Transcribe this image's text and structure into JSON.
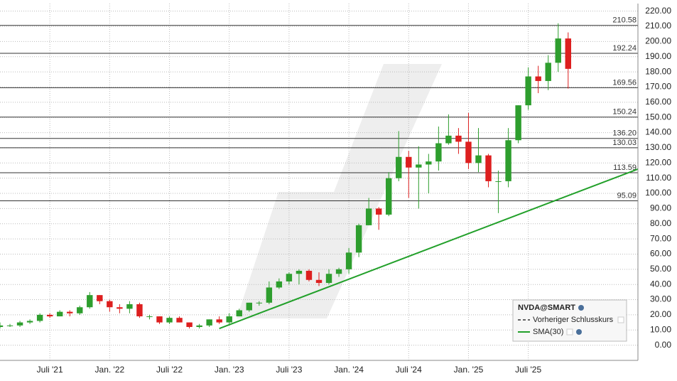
{
  "chart_data": {
    "type": "candlestick",
    "x": [
      "2021-02",
      "2021-03",
      "2021-04",
      "2021-05",
      "2021-06",
      "2021-07",
      "2021-08",
      "2021-09",
      "2021-10",
      "2021-11",
      "2021-12",
      "2022-01",
      "2022-02",
      "2022-03",
      "2022-04",
      "2022-05",
      "2022-06",
      "2022-07",
      "2022-08",
      "2022-09",
      "2022-10",
      "2022-11",
      "2022-12",
      "2023-01",
      "2023-02",
      "2023-03",
      "2023-04",
      "2023-05",
      "2023-06",
      "2023-07",
      "2023-08",
      "2023-09",
      "2023-10",
      "2023-11",
      "2023-12",
      "2024-01",
      "2024-02",
      "2024-03",
      "2024-04",
      "2024-05",
      "2024-06",
      "2024-07",
      "2024-08",
      "2024-09",
      "2024-10",
      "2024-11",
      "2024-12",
      "2025-01",
      "2025-02",
      "2025-03",
      "2025-04",
      "2025-05",
      "2025-06",
      "2025-07",
      "2025-08",
      "2025-09",
      "2025-10",
      "2025-11"
    ],
    "open": [
      12,
      13,
      13,
      15,
      16,
      20,
      19,
      22,
      21,
      25,
      33,
      29,
      25,
      24,
      27,
      19,
      19,
      15,
      18,
      15,
      12,
      13,
      17,
      15,
      19,
      23,
      28,
      28,
      38,
      42,
      47,
      49,
      43,
      41,
      47,
      50,
      61,
      79,
      90,
      86,
      110,
      124,
      117,
      119,
      121,
      133,
      138,
      134,
      120,
      125,
      108,
      108,
      135,
      158,
      177,
      174,
      186,
      202
    ],
    "close": [
      13,
      13,
      15,
      16,
      20,
      19,
      22,
      21,
      25,
      33,
      29,
      25,
      24,
      27,
      19,
      19,
      15,
      18,
      15,
      12,
      13,
      17,
      15,
      19,
      23,
      28,
      28,
      38,
      42,
      47,
      49,
      43,
      41,
      47,
      50,
      61,
      79,
      90,
      86,
      110,
      124,
      117,
      119,
      121,
      133,
      138,
      134,
      120,
      125,
      108,
      108,
      135,
      158,
      177,
      174,
      186,
      202,
      182
    ],
    "high": [
      15,
      14,
      16,
      17,
      21,
      21,
      23,
      23,
      26,
      35,
      33,
      30,
      27,
      29,
      28,
      20,
      19,
      19,
      19,
      15,
      14,
      17,
      19,
      21,
      24,
      28,
      29,
      42,
      44,
      48,
      50,
      50,
      48,
      50,
      51,
      64,
      80,
      97,
      91,
      114,
      141,
      128,
      131,
      126,
      144,
      152,
      143,
      153,
      143,
      126,
      115,
      143,
      158,
      183,
      184,
      191,
      212,
      206
    ],
    "low": [
      11,
      12,
      12,
      14,
      15,
      18,
      19,
      19,
      20,
      24,
      27,
      22,
      21,
      21,
      18,
      17,
      14,
      14,
      15,
      11,
      11,
      12,
      14,
      14,
      19,
      22,
      26,
      27,
      37,
      40,
      40,
      42,
      39,
      40,
      45,
      47,
      58,
      79,
      76,
      85,
      108,
      97,
      90,
      100,
      115,
      132,
      126,
      116,
      114,
      104,
      87,
      104,
      133,
      155,
      166,
      168,
      180,
      169
    ],
    "up_color": "#2e9e2e",
    "down_color": "#dd1f1f",
    "xlim": [
      "2021-02",
      "2026-06"
    ],
    "xticks": [
      {
        "value": "2021-07",
        "label": "Juli '21"
      },
      {
        "value": "2022-01",
        "label": "Jan. '22"
      },
      {
        "value": "2022-07",
        "label": "Juli '22"
      },
      {
        "value": "2023-01",
        "label": "Jan. '23"
      },
      {
        "value": "2023-07",
        "label": "Juli '23"
      },
      {
        "value": "2024-01",
        "label": "Jan. '24"
      },
      {
        "value": "2024-07",
        "label": "Juli '24"
      },
      {
        "value": "2025-01",
        "label": "Jan. '25"
      },
      {
        "value": "2025-07",
        "label": "Juli '25"
      }
    ],
    "ylim": [
      -10,
      225
    ],
    "yticks": [
      {
        "value": 0,
        "label": "0.00"
      },
      {
        "value": 10,
        "label": "10.00"
      },
      {
        "value": 20,
        "label": "20.00"
      },
      {
        "value": 30,
        "label": "30.00"
      },
      {
        "value": 40,
        "label": "40.00"
      },
      {
        "value": 50,
        "label": "50.00"
      },
      {
        "value": 60,
        "label": "60.00"
      },
      {
        "value": 70,
        "label": "70.00"
      },
      {
        "value": 80,
        "label": "80.00"
      },
      {
        "value": 90,
        "label": "90.00"
      },
      {
        "value": 100,
        "label": "100.00"
      },
      {
        "value": 110,
        "label": "110.00"
      },
      {
        "value": 120,
        "label": "120.00"
      },
      {
        "value": 130,
        "label": "130.00"
      },
      {
        "value": 140,
        "label": "140.00"
      },
      {
        "value": 150,
        "label": "150.00"
      },
      {
        "value": 160,
        "label": "160.00"
      },
      {
        "value": 170,
        "label": "170.00"
      },
      {
        "value": 180,
        "label": "180.00"
      },
      {
        "value": 190,
        "label": "190.00"
      },
      {
        "value": 200,
        "label": "200.00"
      },
      {
        "value": 210,
        "label": "210.00"
      },
      {
        "value": 220,
        "label": "220.00"
      }
    ],
    "grid": true,
    "levels": [
      210.58,
      192.24,
      169.56,
      150.24,
      {
        "value": 136.2,
        "label": "136.20"
      },
      130.03,
      113.59,
      95.09
    ],
    "trendline": {
      "x": [
        "2022-12",
        "2026-06"
      ],
      "values": [
        11,
        116
      ],
      "color": "#22a02a"
    },
    "legend": {
      "title": "NVDA@SMART",
      "entries": [
        "Vorheriger Schlusskurs",
        "SMA(30)"
      ],
      "colors": [
        "#333333",
        "#22a02a"
      ]
    }
  }
}
